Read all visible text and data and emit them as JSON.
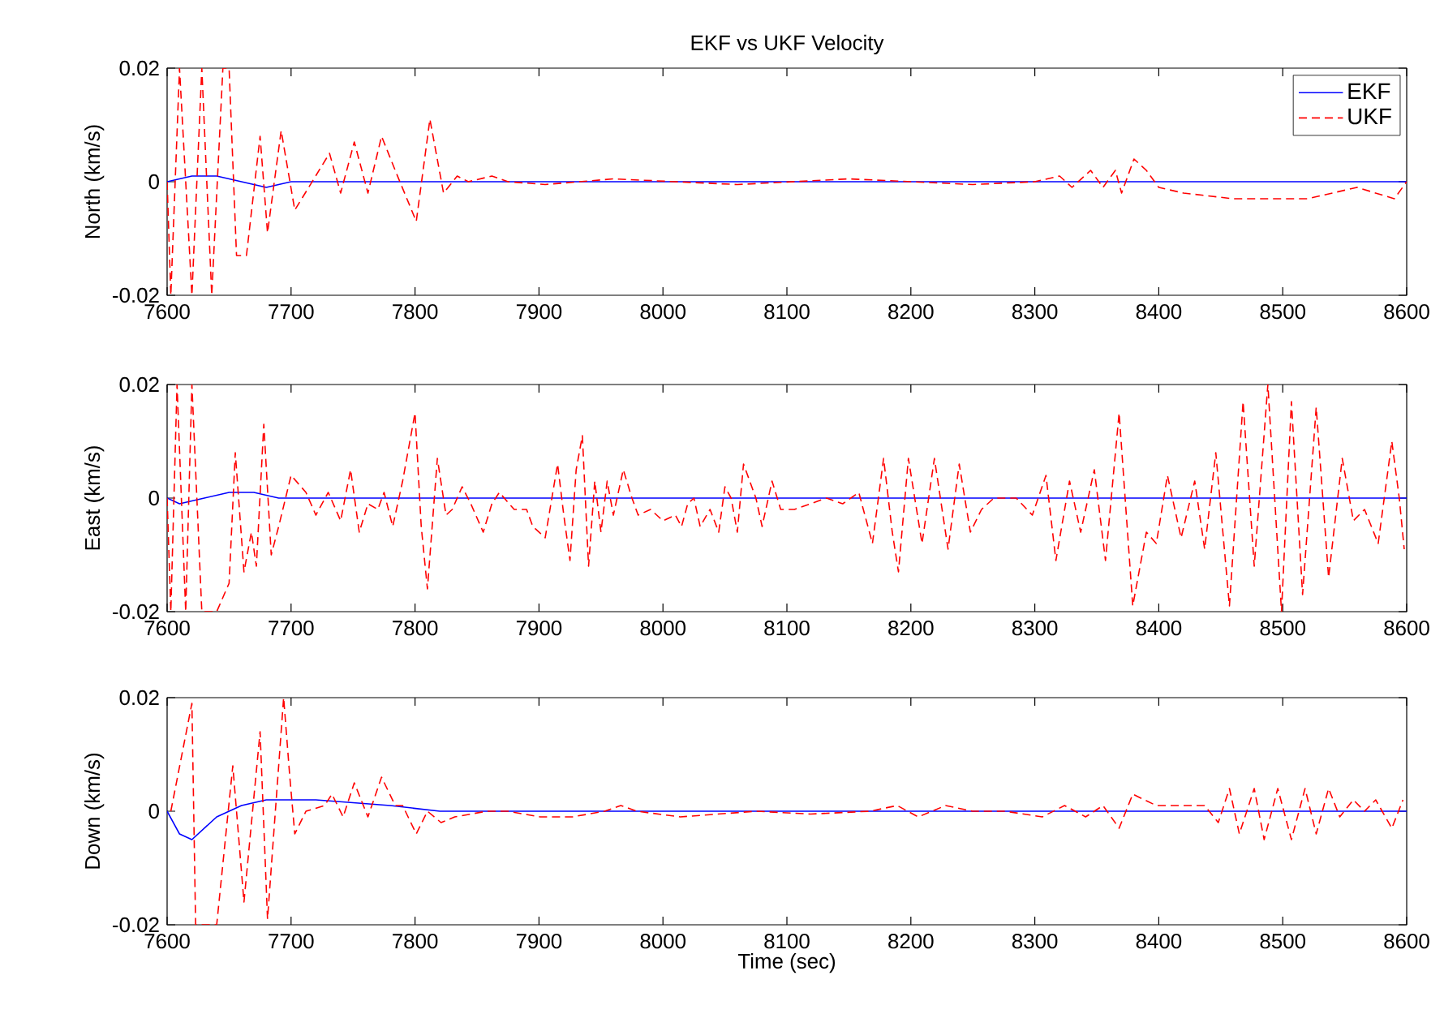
{
  "chart_data": [
    {
      "type": "line",
      "title": "EKF vs UKF Velocity",
      "ylabel": "North (km/s)",
      "xlim": [
        7600,
        8600
      ],
      "xticks": [
        7600,
        7700,
        7800,
        7900,
        8000,
        8100,
        8200,
        8300,
        8400,
        8500,
        8600
      ],
      "ylim": [
        -0.02,
        0.02
      ],
      "yticks": [
        -0.02,
        0,
        0.02
      ],
      "grid": false,
      "legend": "top right",
      "series": [
        {
          "name": "EKF",
          "color": "#0000ff",
          "line_style": "solid",
          "x": [
            7600,
            7620,
            7640,
            7660,
            7680,
            7700,
            7750,
            8600
          ],
          "values": [
            0,
            0.001,
            0.001,
            0,
            -0.001,
            0,
            0,
            0
          ]
        },
        {
          "name": "UKF",
          "color": "#ff0000",
          "line_style": "dashed",
          "x": [
            7600,
            7603,
            7610,
            7620,
            7628,
            7636,
            7645,
            7650,
            7656,
            7664,
            7675,
            7681,
            7692,
            7703,
            7731,
            7740,
            7751,
            7762,
            7773,
            7784,
            7801,
            7812,
            7823,
            7834,
            7843,
            7862,
            7875,
            7905,
            7960,
            8060,
            8150,
            8250,
            8300,
            8320,
            8330,
            8345,
            8355,
            8365,
            8370,
            8380,
            8390,
            8400,
            8420,
            8460,
            8480,
            8500,
            8520,
            8560,
            8590,
            8600
          ],
          "values": [
            0,
            -0.02,
            0.02,
            -0.02,
            0.02,
            -0.02,
            0.02,
            0.02,
            -0.013,
            -0.013,
            0.008,
            -0.009,
            0.009,
            -0.005,
            0.005,
            -0.002,
            0.007,
            -0.002,
            0.008,
            0.002,
            -0.007,
            0.011,
            -0.002,
            0.001,
            0,
            0.001,
            0,
            -0.0005,
            0.0005,
            -0.0005,
            0.0005,
            -0.0005,
            0,
            0.001,
            -0.001,
            0.002,
            -0.001,
            0.002,
            -0.002,
            0.004,
            0.002,
            -0.001,
            -0.002,
            -0.003,
            -0.003,
            -0.003,
            -0.003,
            -0.001,
            -0.003,
            0
          ]
        }
      ]
    },
    {
      "type": "line",
      "ylabel": "East (km/s)",
      "xlim": [
        7600,
        8600
      ],
      "xticks": [
        7600,
        7700,
        7800,
        7900,
        8000,
        8100,
        8200,
        8300,
        8400,
        8500,
        8600
      ],
      "ylim": [
        -0.02,
        0.02
      ],
      "yticks": [
        -0.02,
        0,
        0.02
      ],
      "grid": false,
      "series": [
        {
          "color": "#0000ff",
          "line_style": "solid",
          "x": [
            7600,
            7610,
            7630,
            7650,
            7670,
            7690,
            7750,
            8600
          ],
          "values": [
            0,
            -0.001,
            0,
            0.001,
            0.001,
            0,
            0,
            0
          ]
        },
        {
          "color": "#ff0000",
          "line_style": "dashed",
          "x": [
            7600,
            7603,
            7608,
            7615,
            7620,
            7628,
            7640,
            7650,
            7655,
            7662,
            7668,
            7672,
            7678,
            7684,
            7690,
            7700,
            7712,
            7720,
            7730,
            7740,
            7748,
            7755,
            7762,
            7770,
            7775,
            7782,
            7790,
            7800,
            7805,
            7810,
            7818,
            7825,
            7830,
            7838,
            7845,
            7855,
            7862,
            7868,
            7880,
            7890,
            7895,
            7905,
            7915,
            7920,
            7925,
            7930,
            7935,
            7940,
            7945,
            7950,
            7955,
            7960,
            7968,
            7975,
            7980,
            7990,
            8000,
            8010,
            8015,
            8020,
            8025,
            8030,
            8038,
            8045,
            8050,
            8055,
            8060,
            8065,
            8075,
            8080,
            8088,
            8095,
            8106,
            8119,
            8132,
            8145,
            8158,
            8169,
            8178,
            8185,
            8190,
            8198,
            8209,
            8219,
            8230,
            8239,
            8248,
            8257,
            8267,
            8285,
            8298,
            8309,
            8317,
            8328,
            8337,
            8348,
            8357,
            8368,
            8379,
            8390,
            8398,
            8407,
            8418,
            8429,
            8437,
            8446,
            8457,
            8468,
            8477,
            8488,
            8499,
            8507,
            8516,
            8527,
            8537,
            8548,
            8557,
            8566,
            8577,
            8588,
            8594,
            8598
          ],
          "values": [
            0,
            -0.02,
            0.02,
            -0.02,
            0.02,
            -0.02,
            -0.02,
            -0.015,
            0.008,
            -0.013,
            -0.006,
            -0.012,
            0.013,
            -0.01,
            -0.005,
            0.004,
            0.001,
            -0.003,
            0.001,
            -0.004,
            0.005,
            -0.006,
            -0.001,
            -0.002,
            0.001,
            -0.005,
            0.003,
            0.015,
            -0.005,
            -0.016,
            0.007,
            -0.003,
            -0.002,
            0.002,
            -0.001,
            -0.006,
            -0.001,
            0.001,
            -0.002,
            -0.002,
            -0.005,
            -0.007,
            0.006,
            -0.003,
            -0.011,
            0.005,
            0.011,
            -0.012,
            0.003,
            -0.006,
            0.003,
            -0.003,
            0.005,
            0,
            -0.003,
            -0.002,
            -0.004,
            -0.003,
            -0.005,
            -0.001,
            0,
            -0.005,
            -0.002,
            -0.006,
            0.002,
            0,
            -0.006,
            0.006,
            0,
            -0.005,
            0.003,
            -0.002,
            -0.002,
            -0.001,
            0,
            -0.001,
            0.001,
            -0.008,
            0.007,
            -0.006,
            -0.013,
            0.007,
            -0.008,
            0.007,
            -0.009,
            0.006,
            -0.006,
            -0.002,
            0,
            0,
            -0.003,
            0.004,
            -0.011,
            0.003,
            -0.006,
            0.005,
            -0.011,
            0.015,
            -0.019,
            -0.006,
            -0.008,
            0.004,
            -0.007,
            0.003,
            -0.009,
            0.008,
            -0.019,
            0.017,
            -0.012,
            0.02,
            -0.02,
            0.017,
            -0.017,
            0.016,
            -0.014,
            0.007,
            -0.004,
            -0.002,
            -0.008,
            0.01,
            0,
            -0.009
          ]
        }
      ]
    },
    {
      "type": "line",
      "xlabel": "Time (sec)",
      "ylabel": "Down (km/s)",
      "xlim": [
        7600,
        8600
      ],
      "xticks": [
        7600,
        7700,
        7800,
        7900,
        8000,
        8100,
        8200,
        8300,
        8400,
        8500,
        8600
      ],
      "ylim": [
        -0.02,
        0.02
      ],
      "yticks": [
        -0.02,
        0,
        0.02
      ],
      "grid": false,
      "series": [
        {
          "color": "#0000ff",
          "line_style": "solid",
          "x": [
            7600,
            7610,
            7620,
            7640,
            7660,
            7680,
            7720,
            7780,
            7820,
            7900,
            8600
          ],
          "values": [
            0,
            -0.004,
            -0.005,
            -0.001,
            0.001,
            0.002,
            0.002,
            0.001,
            0,
            0,
            0
          ]
        },
        {
          "color": "#ff0000",
          "line_style": "dashed",
          "x": [
            7603,
            7620,
            7623,
            7640,
            7653,
            7662,
            7675,
            7681,
            7694,
            7699,
            7703,
            7712,
            7727,
            7733,
            7742,
            7751,
            7762,
            7773,
            7784,
            7790,
            7801,
            7810,
            7821,
            7832,
            7858,
            7875,
            7901,
            7927,
            7953,
            7966,
            7979,
            8014,
            8075,
            8119,
            8167,
            8189,
            8206,
            8228,
            8250,
            8276,
            8306,
            8324,
            8341,
            8355,
            8368,
            8379,
            8398,
            8418,
            8437,
            8448,
            8457,
            8465,
            8477,
            8485,
            8496,
            8507,
            8518,
            8527,
            8537,
            8546,
            8557,
            8566,
            8575,
            8588,
            8597
          ],
          "values": [
            0,
            0.019,
            -0.02,
            -0.02,
            0.008,
            -0.016,
            0.014,
            -0.019,
            0.02,
            0.006,
            -0.004,
            0,
            0.001,
            0.003,
            -0.001,
            0.005,
            -0.001,
            0.006,
            0.001,
            0.001,
            -0.004,
            0,
            -0.002,
            -0.001,
            0,
            0,
            -0.001,
            -0.001,
            0,
            0.001,
            0,
            -0.001,
            0,
            -0.0005,
            0,
            0.001,
            -0.001,
            0.001,
            0,
            0,
            -0.001,
            0.001,
            -0.001,
            0.001,
            -0.003,
            0.003,
            0.001,
            0.001,
            0.001,
            -0.002,
            0.004,
            -0.004,
            0.004,
            -0.005,
            0.004,
            -0.005,
            0.004,
            -0.004,
            0.004,
            -0.001,
            0.002,
            0,
            0.002,
            -0.003,
            0.002
          ]
        }
      ]
    }
  ]
}
